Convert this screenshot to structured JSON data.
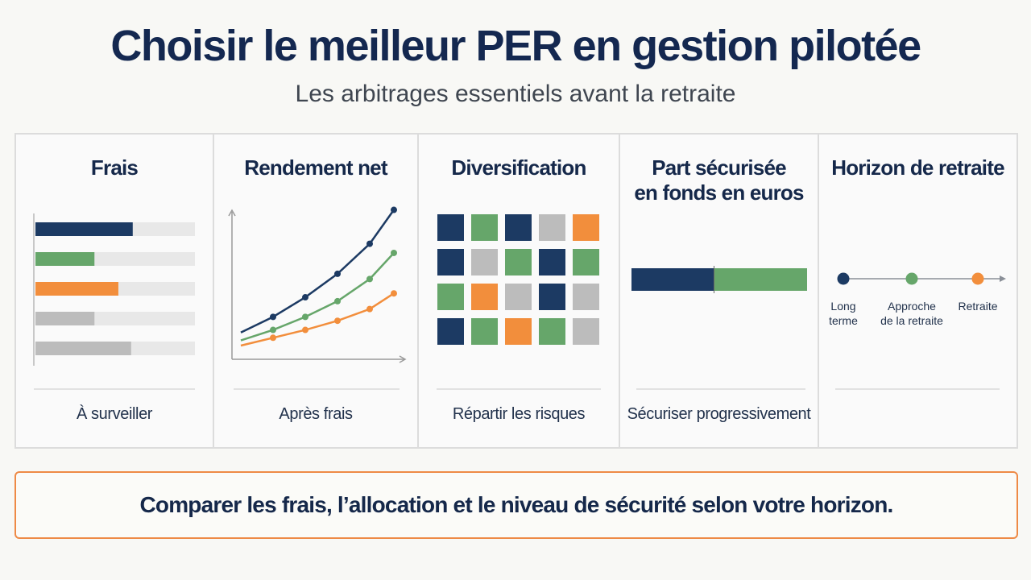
{
  "header": {
    "title": "Choisir le meilleur PER en gestion pilotée",
    "subtitle": "Les arbitrages essentiels avant la retraite"
  },
  "colors": {
    "navy": "#1c3a63",
    "green": "#66a66a",
    "orange": "#f28e3c",
    "gray": "#bcbcbc"
  },
  "panels": [
    {
      "title": "Frais",
      "caption": "À surveiller"
    },
    {
      "title": "Rendement net",
      "caption": "Après frais"
    },
    {
      "title": "Diversification",
      "caption": "Répartir les risques"
    },
    {
      "title": "Part sécurisée en fonds en euros",
      "title_line1": "Part sécurisée",
      "title_line2": "en fonds en euros",
      "caption": "Sécuriser progressivement"
    },
    {
      "title": "Horizon de retraite",
      "caption": ""
    }
  ],
  "fees_bars": [
    {
      "color": "navy",
      "fill": 0.61
    },
    {
      "color": "green",
      "fill": 0.37
    },
    {
      "color": "orange",
      "fill": 0.52
    },
    {
      "color": "gray",
      "fill": 0.37
    },
    {
      "color": "gray",
      "fill": 0.6
    }
  ],
  "return_lines": [
    {
      "color": "navy",
      "values": [
        10,
        22,
        37,
        55,
        78,
        104
      ]
    },
    {
      "color": "green",
      "values": [
        4,
        12,
        22,
        34,
        51,
        71
      ]
    },
    {
      "color": "orange",
      "values": [
        0,
        6,
        12,
        19,
        28,
        40
      ]
    }
  ],
  "diversification_grid": [
    [
      "navy",
      "green",
      "navy",
      "gray",
      "orange"
    ],
    [
      "navy",
      "gray",
      "green",
      "navy",
      "green"
    ],
    [
      "green",
      "orange",
      "gray",
      "navy",
      "gray"
    ],
    [
      "navy",
      "green",
      "orange",
      "green",
      "gray"
    ]
  ],
  "secure_split": {
    "left_color": "navy",
    "right_color": "green",
    "left_fraction": 0.47
  },
  "horizon": [
    {
      "line1": "Long",
      "line2": "terme",
      "color": "navy"
    },
    {
      "line1": "Approche",
      "line2": "de la retraite",
      "color": "green"
    },
    {
      "line1": "Retraite",
      "line2": "",
      "color": "orange"
    }
  ],
  "footer": {
    "text": "Comparer les frais, l’allocation et le niveau de sécurité selon votre horizon."
  }
}
